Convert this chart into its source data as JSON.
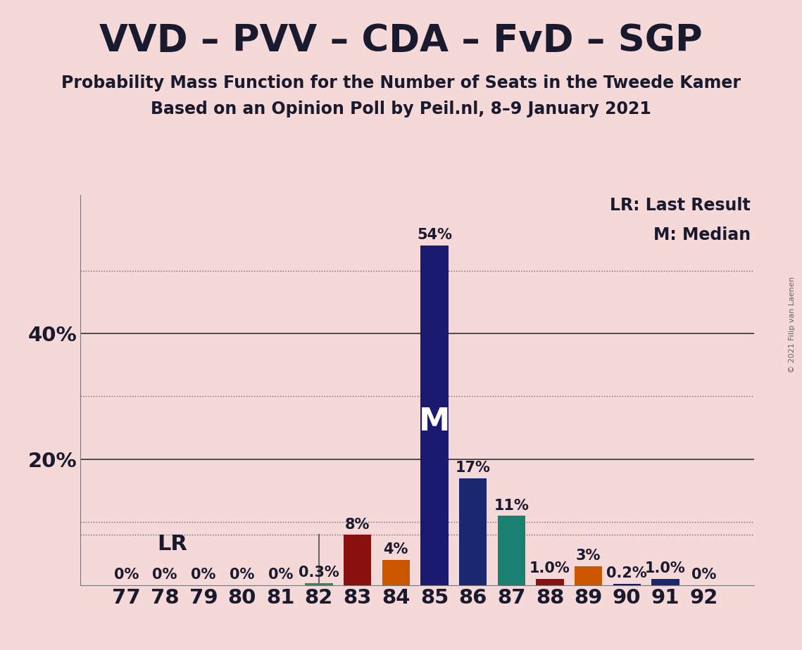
{
  "title": "VVD – PVV – CDA – FvD – SGP",
  "subtitle1": "Probability Mass Function for the Number of Seats in the Tweede Kamer",
  "subtitle2": "Based on an Opinion Poll by Peil.nl, 8–9 January 2021",
  "copyright": "© 2021 Filip van Laenen",
  "background_color": "#f5d8d8",
  "seats": [
    77,
    78,
    79,
    80,
    81,
    82,
    83,
    84,
    85,
    86,
    87,
    88,
    89,
    90,
    91,
    92
  ],
  "probabilities": [
    0.0,
    0.0,
    0.0,
    0.0,
    0.0,
    0.3,
    8.0,
    4.0,
    54.0,
    17.0,
    11.0,
    1.0,
    3.0,
    0.2,
    1.0,
    0.0
  ],
  "bar_color_map": {
    "77": "#1e2882",
    "78": "#1e2882",
    "79": "#1e2882",
    "80": "#1e2882",
    "81": "#1e2882",
    "82": "#2e8b57",
    "83": "#8b1010",
    "84": "#cc5500",
    "85": "#1a1a70",
    "86": "#1a2870",
    "87": "#1a8070",
    "88": "#8b1010",
    "89": "#cc5500",
    "90": "#1a1a70",
    "91": "#1a2870",
    "92": "#1a2870"
  },
  "lr_seat": 82,
  "median_seat": 85,
  "lr_label": "LR",
  "median_label": "M",
  "legend_lr": "LR: Last Result",
  "legend_m": "M: Median",
  "ylim": [
    0,
    62
  ],
  "title_fontsize": 38,
  "subtitle_fontsize": 17,
  "axis_fontsize": 21,
  "bar_label_fontsize": 15,
  "legend_fontsize": 17,
  "text_color": "#1a1a2e"
}
